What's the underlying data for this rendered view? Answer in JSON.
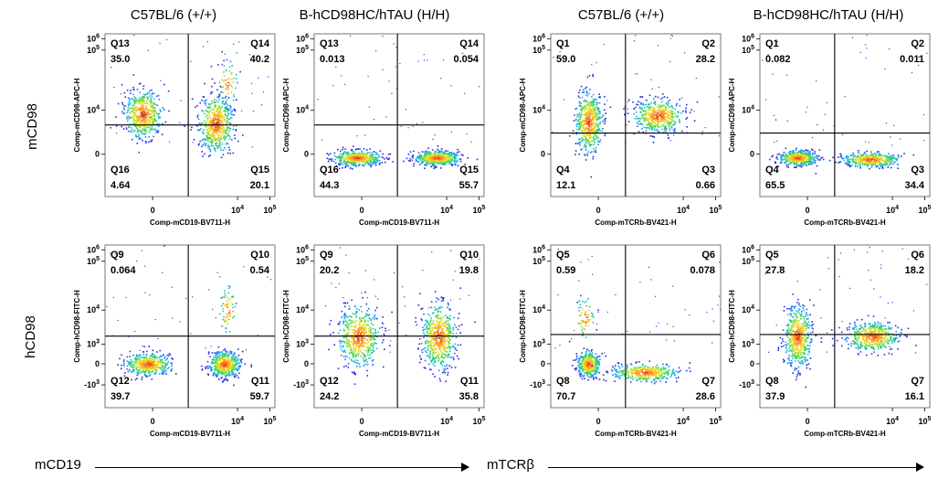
{
  "columns": [
    "C57BL/6 (+/+)",
    "B-hCD98HC/hTAU (H/H)",
    "C57BL/6 (+/+)",
    "B-hCD98HC/hTAU (H/H)"
  ],
  "row_labels": [
    "mCD98",
    "hCD98"
  ],
  "bottom_labels": [
    "mCD19",
    "mTCRβ"
  ],
  "chart_data": [
    {
      "type": "scatter",
      "column": 0,
      "row": 0,
      "xlabel": "Comp-mCD19-BV711-H",
      "ylabel": "Comp-mCD98-APC-H",
      "quadrants": [
        {
          "name": "Q13",
          "value": "35.0"
        },
        {
          "name": "Q14",
          "value": "40.2"
        },
        {
          "name": "Q16",
          "value": "4.64"
        },
        {
          "name": "Q15",
          "value": "20.1"
        }
      ]
    },
    {
      "type": "scatter",
      "column": 1,
      "row": 0,
      "xlabel": "Comp-mCD19-BV711-H",
      "ylabel": "Comp-mCD98-APC-H",
      "quadrants": [
        {
          "name": "Q13",
          "value": "0.013"
        },
        {
          "name": "Q14",
          "value": "0.054"
        },
        {
          "name": "Q16",
          "value": "44.3"
        },
        {
          "name": "Q15",
          "value": "55.7"
        }
      ]
    },
    {
      "type": "scatter",
      "column": 2,
      "row": 0,
      "xlabel": "Comp-mTCRb-BV421-H",
      "ylabel": "Comp-mCD98-APC-H",
      "quadrants": [
        {
          "name": "Q1",
          "value": "59.0"
        },
        {
          "name": "Q2",
          "value": "28.2"
        },
        {
          "name": "Q4",
          "value": "12.1"
        },
        {
          "name": "Q3",
          "value": "0.66"
        }
      ]
    },
    {
      "type": "scatter",
      "column": 3,
      "row": 0,
      "xlabel": "Comp-mTCRb-BV421-H",
      "ylabel": "Comp-mCD98-APC-H",
      "quadrants": [
        {
          "name": "Q1",
          "value": "0.082"
        },
        {
          "name": "Q2",
          "value": "0.011"
        },
        {
          "name": "Q4",
          "value": "65.5"
        },
        {
          "name": "Q3",
          "value": "34.4"
        }
      ]
    },
    {
      "type": "scatter",
      "column": 0,
      "row": 1,
      "xlabel": "Comp-mCD19-BV711-H",
      "ylabel": "Comp-hCD98-FITC-H",
      "quadrants": [
        {
          "name": "Q9",
          "value": "0.064"
        },
        {
          "name": "Q10",
          "value": "0.54"
        },
        {
          "name": "Q12",
          "value": "39.7"
        },
        {
          "name": "Q11",
          "value": "59.7"
        }
      ]
    },
    {
      "type": "scatter",
      "column": 1,
      "row": 1,
      "xlabel": "Comp-mCD19-BV711-H",
      "ylabel": "Comp-hCD98-FITC-H",
      "quadrants": [
        {
          "name": "Q9",
          "value": "20.2"
        },
        {
          "name": "Q10",
          "value": "19.8"
        },
        {
          "name": "Q12",
          "value": "24.2"
        },
        {
          "name": "Q11",
          "value": "35.8"
        }
      ]
    },
    {
      "type": "scatter",
      "column": 2,
      "row": 1,
      "xlabel": "Comp-mTCRb-BV421-H",
      "ylabel": "Comp-hCD98-FITC-H",
      "quadrants": [
        {
          "name": "Q5",
          "value": "0.59"
        },
        {
          "name": "Q6",
          "value": "0.078"
        },
        {
          "name": "Q8",
          "value": "70.7"
        },
        {
          "name": "Q7",
          "value": "28.6"
        }
      ]
    },
    {
      "type": "scatter",
      "column": 3,
      "row": 1,
      "xlabel": "Comp-mTCRb-BV421-H",
      "ylabel": "Comp-hCD98-FITC-H",
      "quadrants": [
        {
          "name": "Q5",
          "value": "27.8"
        },
        {
          "name": "Q6",
          "value": "18.2"
        },
        {
          "name": "Q8",
          "value": "37.9"
        },
        {
          "name": "Q7",
          "value": "16.1"
        }
      ]
    }
  ],
  "axis_ticks": {
    "x": [
      "0",
      "10^4",
      "10^5"
    ],
    "y_row0": [
      "10^6",
      "10^5",
      "10^4",
      "0"
    ],
    "y_row1": [
      "10^6",
      "10^5",
      "10^4",
      "10^3",
      "0",
      "-10^3"
    ]
  }
}
